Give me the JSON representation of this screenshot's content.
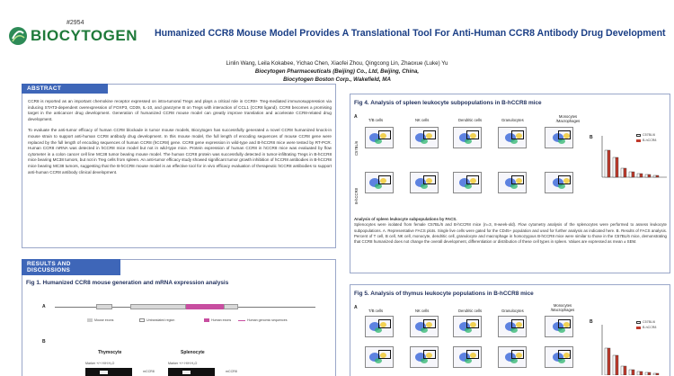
{
  "header": {
    "poster_number": "#2954",
    "logo_text": "BIOCYTOGEN",
    "title": "Humanized CCR8 Mouse Model Provides A Translational Tool For Anti-Human CCR8 Antibody Drug Development",
    "authors": "Linlin Wang, Leila Kokabee, Yichao Chen, Xiaofei Zhou, Qingcong Lin, Zhaoxue (Luke) Yu",
    "affiliation_1": "Biocytogen Pharmaceuticals (Beijing) Co., Ltd, Beijing, China,",
    "affiliation_2": "Biocytogen Boston Corp., Wakefield, MA"
  },
  "abstract": {
    "heading": "ABSTRACT",
    "paragraph_1": "CCR8 is reported as an important chemokine receptor expressed on intra-tumoral Tregs and plays a critical role in CCR8+ Treg-mediated immunosuppression via inducing STAT3-dependent overexpression of FOXP3, CD39, IL-10, and granzyme B on Tregs with interaction of CCL1 (CCR8 ligand). CCR8 becomes a promising target in the anticancer drug development. Generation of humanized CCR8 mouse model can greatly improve translation and accelerate CCR8-related drug development.",
    "paragraph_2": "To evaluate the anti-tumor efficacy of human CCR8 blockade in tumor mouse models, Biocytogen has successfully generated a novel CCR8 humanized knock-in mouse strain to support anti-human CCR8 antibody drug development. In this mouse model, the full length of encoding sequences of mouse CCR8 gene were replaced by the full length of encoding sequences of human CCR8 (hCCR8) gene. CCR8 gene expression in wild-type and B-hCCR8 mice were tested by RT-PCR. Human CCR8 mRNA was detected in hCCR8 mice model but not in wild-type mice. Protein expression of human CCR8 in hCCR8 mice was evaluated by flow cytometer in a colon cancer cell line MC38 tumor bearing mouse model. The human CCR8 protein was successfully detected in tumor-infiltrating Tregs in B-hCCR8 mice bearing MC38 tumors, but not in Treg cells from spleen. An anti-tumor efficacy study showed significant tumor growth inhibition of hCCR8 antibodies in B-hCCR8 mice bearing MC38 tumors, suggesting that the B-hCCR8 mouse model is an effective tool for in vivo efficacy evaluation of therapeutic hCCR8 antibodies to support anti-human CCR8 antibody clinical development."
  },
  "results": {
    "heading": "RESULTS AND DISCUSSIONS",
    "fig1_title": "Fig 1. Humanized CCR8 mouse generation and mRNA expression analysis",
    "panel_a": "A",
    "panel_b": "B",
    "legend_mouse_exons": "Mouse exons",
    "legend_utr": "Untranslated region",
    "legend_human_exons": "Human exons",
    "legend_human_seq": "Human genomic sequences",
    "thymocyte": "Thymocyte",
    "splenocyte": "Splenocyte",
    "marker_label": "Marker  +/+  H/H  H₂O",
    "mccr8": "mCCR8"
  },
  "fig4": {
    "title": "Fig 4. Analysis of spleen leukocyte subpopulations in B-hCCR8 mice",
    "panel_a": "A",
    "panel_b": "B",
    "columns": [
      "T/B cells",
      "NK cells",
      "Dendritic cells",
      "Granulocytes",
      "Monocytes /Macrophages"
    ],
    "row_labels": [
      "C57BL/6",
      "B-hCCR8"
    ],
    "legend": [
      "C57BL/6",
      "B-hCCR8"
    ],
    "caption_title": "Analysis of spleen leukocyte subpopulations by FACS.",
    "caption": "Splenocytes were isolated from female C57BL/6 and B-hCCR8 mice (n=3, 8-week-old). Flow cytometry analysis of the splenocytes were performed to assess leukocyte subpopulations. A. Representative FACS plots. Single live cells were gated for the CD45+ population and used for further analysis as indicated here. B. Results of FACS analysis. Percent of T cell, B cell, NK cell, monocyte, dendritic cell, granulocyte and macrophage in homozygous B-hCCR8 mice were similar to those in the C57BL/6 mice, demonstrating that CCR8 humanized does not change the overall development, differentiation or distribution of these cell types in spleen. Values are expressed as mean ± SEM."
  },
  "fig5": {
    "title": "Fig 5. Analysis of thymus leukocyte populations in B-hCCR8 mice",
    "panel_a": "A",
    "panel_b": "B",
    "columns": [
      "T/B cells",
      "NK cells",
      "Dendritic cells",
      "Granulocytes",
      "Monocytes /Macrophages"
    ],
    "legend": [
      "C57BL/6",
      "B-hCCR8"
    ]
  },
  "colors": {
    "accent_blue": "#3e66b8",
    "title_blue": "#1b3f86",
    "brand_green": "#1f7a3a",
    "human_exon_pink": "#c84ea0"
  }
}
